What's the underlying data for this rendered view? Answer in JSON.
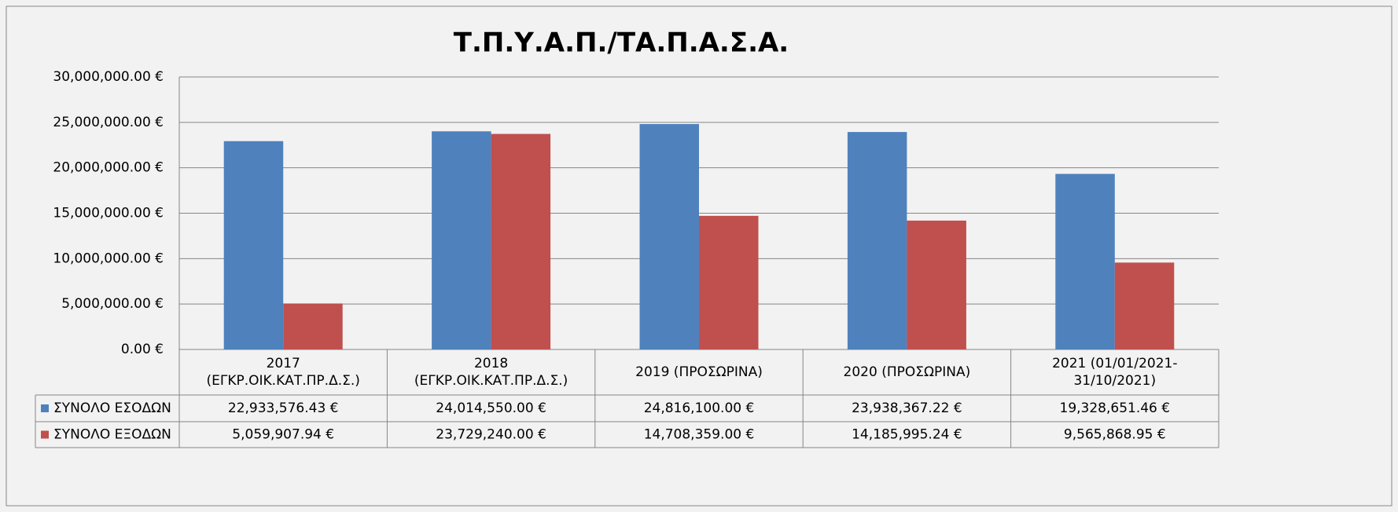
{
  "chart_data": {
    "type": "bar",
    "title": "Τ.Π.Υ.Α.Π./ΤΑ.Π.Α.Σ.Α.",
    "categories": [
      "2017\n(ΕΓΚΡ.ΟΙΚ.ΚΑΤ.ΠΡ.Δ.Σ.)",
      "2018\n(ΕΓΚΡ.ΟΙΚ.ΚΑΤ.ΠΡ.Δ.Σ.)",
      "2019 (ΠΡΟΣΩΡΙΝΑ)",
      "2020 (ΠΡΟΣΩΡΙΝΑ)",
      "2021  (01/01/2021-\n31/10/2021)"
    ],
    "series": [
      {
        "name": "ΣΥΝΟΛΟ ΕΣΟΔΩΝ",
        "color": "#4f81bd",
        "values": [
          22933576.43,
          24014550.0,
          24816100.0,
          23938367.22,
          19328651.46
        ],
        "value_labels": [
          "22,933,576.43 €",
          "24,014,550.00 €",
          "24,816,100.00 €",
          "23,938,367.22 €",
          "19,328,651.46 €"
        ]
      },
      {
        "name": "ΣΥΝΟΛΟ ΕΞΟΔΩΝ",
        "color": "#c0504d",
        "values": [
          5059907.94,
          23729240.0,
          14708359.0,
          14185995.24,
          9565868.95
        ],
        "value_labels": [
          "5,059,907.94 €",
          "23,729,240.00 €",
          "14,708,359.00 €",
          "14,185,995.24 €",
          "9,565,868.95 €"
        ]
      }
    ],
    "ylim": [
      0,
      30000000
    ],
    "yticks": [
      {
        "value": 0,
        "label": "0.00 €"
      },
      {
        "value": 5000000,
        "label": "5,000,000.00 €"
      },
      {
        "value": 10000000,
        "label": "10,000,000.00 €"
      },
      {
        "value": 15000000,
        "label": "15,000,000.00 €"
      },
      {
        "value": 20000000,
        "label": "20,000,000.00 €"
      },
      {
        "value": 25000000,
        "label": "25,000,000.00 €"
      },
      {
        "value": 30000000,
        "label": "30,000,000.00 €"
      }
    ],
    "grid": true
  }
}
